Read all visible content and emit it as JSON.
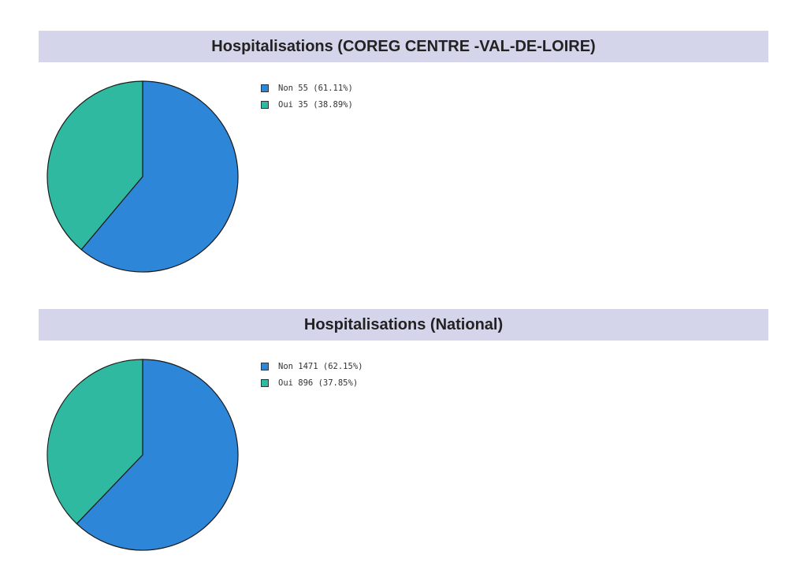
{
  "chart_data": [
    {
      "type": "pie",
      "title": "Hospitalisations (COREG CENTRE -VAL-DE-LOIRE)",
      "categories": [
        "Non",
        "Oui"
      ],
      "values": [
        55,
        35
      ],
      "percentages": [
        61.11,
        38.89
      ],
      "colors": [
        "#2e86d8",
        "#2fb9a0"
      ],
      "legend_labels": [
        "Non 55 (61.11%)",
        "Oui 35 (38.89%)"
      ],
      "legend_position": "right"
    },
    {
      "type": "pie",
      "title": "Hospitalisations (National)",
      "categories": [
        "Non",
        "Oui"
      ],
      "values": [
        1471,
        896
      ],
      "percentages": [
        62.15,
        37.85
      ],
      "colors": [
        "#2e86d8",
        "#2fb9a0"
      ],
      "legend_labels": [
        "Non 1471 (62.15%)",
        "Oui 896 (37.85%)"
      ],
      "legend_position": "right"
    }
  ]
}
